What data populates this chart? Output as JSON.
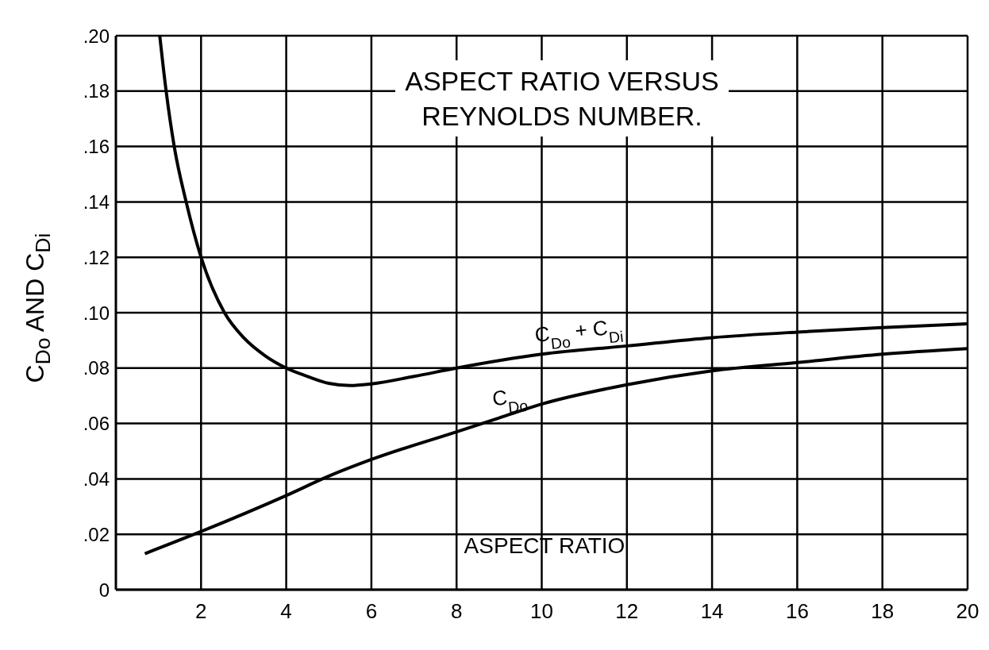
{
  "chart_data": {
    "type": "line",
    "title": "ASPECT RATIO VERSUS REYNOLDS NUMBER.",
    "xlabel": "ASPECT RATIO",
    "ylabel": "C$_{Do}$ AND C$_{Di}$",
    "xlim": [
      0,
      20
    ],
    "xticks": [
      2,
      4,
      6,
      8,
      10,
      12,
      14,
      16,
      18,
      20
    ],
    "ylim": [
      0,
      0.2
    ],
    "yticks": [
      {
        "value": 0,
        "label": "0"
      },
      {
        "value": 0.02,
        "label": ".02"
      },
      {
        "value": 0.04,
        "label": ".04"
      },
      {
        "value": 0.06,
        "label": ".06"
      },
      {
        "value": 0.08,
        "label": ".08"
      },
      {
        "value": 0.1,
        "label": ".10"
      },
      {
        "value": 0.12,
        "label": ".12"
      },
      {
        "value": 0.14,
        "label": ".14"
      },
      {
        "value": 0.16,
        "label": ".16"
      },
      {
        "value": 0.18,
        "label": ".18"
      },
      {
        "value": 0.2,
        "label": ".20"
      }
    ],
    "grid": true,
    "legend": false,
    "marker": "none",
    "line_style": "solid",
    "series": [
      {
        "name": "C$_{Do}$ + C$_{Di}$",
        "color": "#000000",
        "x": [
          1.03,
          1.18,
          1.37,
          1.65,
          2,
          2.55,
          3,
          3.5,
          4,
          4.5,
          5,
          5.5,
          6,
          7,
          8,
          10,
          12,
          14,
          16,
          18,
          20
        ],
        "values": [
          0.2,
          0.18,
          0.16,
          0.14,
          0.12,
          0.1,
          0.091,
          0.0845,
          0.08,
          0.077,
          0.0745,
          0.0737,
          0.0743,
          0.077,
          0.08,
          0.085,
          0.088,
          0.091,
          0.093,
          0.0946,
          0.096
        ]
      },
      {
        "name": "C$_{Do}$",
        "color": "#000000",
        "x": [
          0.68,
          2,
          4,
          5,
          6,
          8,
          9,
          10,
          12,
          14,
          16,
          18,
          20
        ],
        "values": [
          0.013,
          0.021,
          0.034,
          0.041,
          0.047,
          0.057,
          0.062,
          0.067,
          0.074,
          0.079,
          0.082,
          0.085,
          0.087
        ]
      }
    ]
  }
}
